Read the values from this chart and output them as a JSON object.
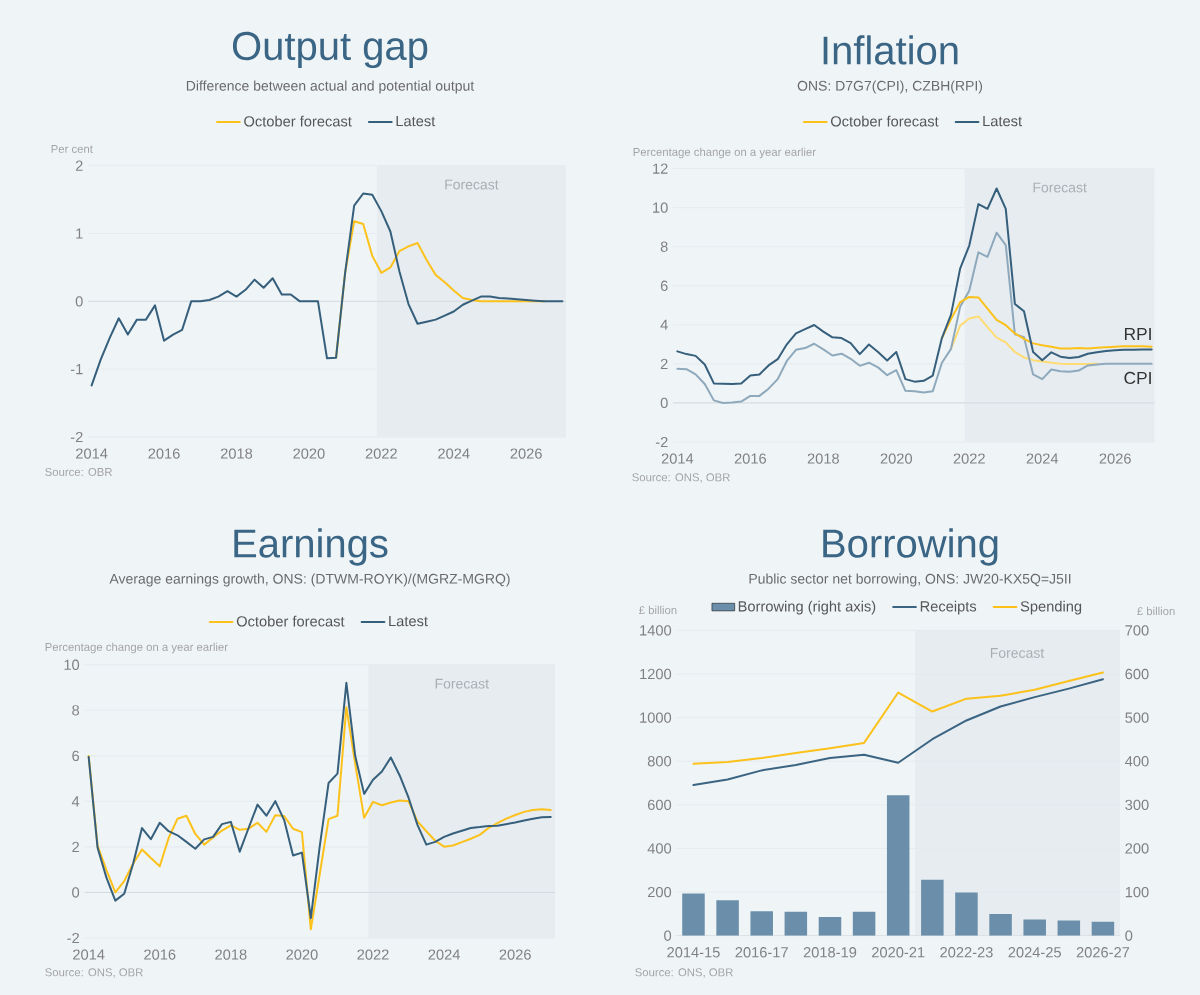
{
  "chart_data": [
    {
      "type": "line",
      "title": "Output gap",
      "subtitle": "Difference between actual and potential output",
      "ylabel": "Per cent",
      "x": [
        2014,
        2014.25,
        2014.5,
        2014.75,
        2015,
        2015.25,
        2015.5,
        2015.75,
        2016,
        2016.25,
        2016.5,
        2016.75,
        2017,
        2017.25,
        2017.5,
        2017.75,
        2018,
        2018.25,
        2018.5,
        2018.75,
        2019,
        2019.25,
        2019.5,
        2019.75,
        2020,
        2020.25,
        2020.5,
        2020.75,
        2021,
        2021.25,
        2021.5,
        2021.75,
        2022,
        2022.25,
        2022.5,
        2022.75,
        2023,
        2023.25,
        2023.5,
        2023.75,
        2024,
        2024.25,
        2024.5,
        2024.75,
        2025,
        2025.25,
        2025.5,
        2025.75,
        2026,
        2026.25,
        2026.5,
        2026.75,
        2027
      ],
      "xlim": [
        2013.9,
        2027.1
      ],
      "xticks": [
        2014,
        2016,
        2018,
        2020,
        2022,
        2024,
        2026
      ],
      "ylim": [
        -2,
        2
      ],
      "yticks": [
        -2,
        -1,
        0,
        1,
        2
      ],
      "series": [
        {
          "name": "October forecast",
          "color": "#fcc21b",
          "values": [
            null,
            null,
            null,
            null,
            null,
            null,
            null,
            null,
            null,
            null,
            null,
            null,
            null,
            null,
            null,
            null,
            null,
            null,
            null,
            null,
            null,
            null,
            null,
            null,
            null,
            null,
            null,
            -0.83,
            0.42,
            1.18,
            1.14,
            0.67,
            0.42,
            0.5,
            0.74,
            0.81,
            0.86,
            0.61,
            0.39,
            0.28,
            0.16,
            0.05,
            0.02,
            0,
            0,
            0,
            0,
            0,
            0,
            0,
            0,
            null,
            null
          ]
        },
        {
          "name": "Latest",
          "color": "#365f7c",
          "values": [
            -1.24,
            -0.86,
            -0.54,
            -0.25,
            -0.49,
            -0.27,
            -0.27,
            -0.06,
            -0.58,
            -0.49,
            -0.42,
            0,
            0,
            0.02,
            0.07,
            0.15,
            0.07,
            0.17,
            0.32,
            0.2,
            0.34,
            0.1,
            0.1,
            0,
            0,
            0,
            -0.84,
            -0.83,
            0.42,
            1.41,
            1.59,
            1.57,
            1.33,
            1.03,
            0.44,
            -0.04,
            -0.33,
            -0.3,
            -0.27,
            -0.21,
            -0.15,
            -0.05,
            0.01,
            0.07,
            0.07,
            0.05,
            0.04,
            0.03,
            0.02,
            0.01,
            0,
            0,
            0
          ]
        }
      ],
      "bands": [
        {
          "axis": "x",
          "from": 2021.875,
          "to": 2027.1,
          "label": "Forecast",
          "color": "#e6ecf0"
        }
      ],
      "annotations": [
        "Source: OBR"
      ],
      "legend": "top",
      "grid": "y"
    },
    {
      "type": "line",
      "title": "Inflation",
      "subtitle": "ONS: D7G7(CPI), CZBH(RPI)",
      "ylabel": "Percentage change on a year earlier",
      "x": [
        2014,
        2014.25,
        2014.5,
        2014.75,
        2015,
        2015.25,
        2015.5,
        2015.75,
        2016,
        2016.25,
        2016.5,
        2016.75,
        2017,
        2017.25,
        2017.5,
        2017.75,
        2018,
        2018.25,
        2018.5,
        2018.75,
        2019,
        2019.25,
        2019.5,
        2019.75,
        2020,
        2020.25,
        2020.5,
        2020.75,
        2021,
        2021.25,
        2021.5,
        2021.75,
        2022,
        2022.25,
        2022.5,
        2022.75,
        2023,
        2023.25,
        2023.5,
        2023.75,
        2024,
        2024.25,
        2024.5,
        2024.75,
        2025,
        2025.25,
        2025.5,
        2025.75,
        2026,
        2026.25,
        2026.5,
        2026.75,
        2027
      ],
      "xlim": [
        2013.88,
        2027.08
      ],
      "xticks": [
        2014,
        2016,
        2018,
        2020,
        2022,
        2024,
        2026
      ],
      "ylim": [
        -2,
        12
      ],
      "yticks": [
        -2,
        0,
        2,
        4,
        6,
        8,
        10,
        12
      ],
      "series": [
        {
          "color": "#ffdc73",
          "values": [
            null,
            null,
            null,
            null,
            null,
            null,
            null,
            null,
            null,
            null,
            null,
            null,
            null,
            null,
            null,
            null,
            null,
            null,
            null,
            null,
            null,
            null,
            null,
            null,
            null,
            null,
            null,
            null,
            null,
            null,
            2.77,
            3.96,
            4.32,
            4.43,
            3.88,
            3.34,
            3.1,
            2.61,
            2.33,
            2.19,
            2.12,
            2.06,
            2.01,
            1.99,
            1.99,
            1.99,
            2,
            null,
            null,
            null,
            null,
            null,
            null
          ]
        },
        {
          "color": "#8fa9bc",
          "values": [
            1.75,
            1.73,
            1.46,
            0.97,
            0.13,
            0,
            0.02,
            0.07,
            0.36,
            0.36,
            0.73,
            1.22,
            2.15,
            2.72,
            2.81,
            3.03,
            2.74,
            2.43,
            2.52,
            2.26,
            1.9,
            2.06,
            1.82,
            1.42,
            1.68,
            0.62,
            0.6,
            0.53,
            0.6,
            2.06,
            2.77,
            4.92,
            5.74,
            7.71,
            7.48,
            8.72,
            8.08,
            3.52,
            3.37,
            1.46,
            1.22,
            1.71,
            1.62,
            1.6,
            1.66,
            1.92,
            1.97,
            2.01,
            2,
            2,
            2,
            2,
            2
          ]
        },
        {
          "name": "October forecast",
          "color": "#fcc21b",
          "values": [
            null,
            null,
            null,
            null,
            null,
            null,
            null,
            null,
            null,
            null,
            null,
            null,
            null,
            null,
            null,
            null,
            null,
            null,
            null,
            null,
            null,
            null,
            null,
            null,
            null,
            null,
            null,
            null,
            null,
            3.32,
            4.29,
            5.16,
            5.43,
            5.4,
            4.83,
            4.25,
            3.98,
            3.56,
            3.28,
            3.05,
            2.95,
            2.88,
            2.79,
            2.79,
            2.81,
            2.79,
            2.83,
            2.85,
            2.88,
            2.9,
            2.9,
            2.9,
            2.88
          ]
        },
        {
          "name": "Latest",
          "color": "#365f7c",
          "values": [
            2.64,
            2.5,
            2.41,
            1.97,
            1.0,
            0.98,
            0.97,
            1.0,
            1.4,
            1.46,
            1.92,
            2.24,
            3.0,
            3.56,
            3.78,
            3.99,
            3.65,
            3.36,
            3.32,
            3.06,
            2.5,
            2.99,
            2.61,
            2.17,
            2.61,
            1.22,
            1.09,
            1.13,
            1.4,
            3.32,
            4.52,
            6.88,
            8.06,
            10.18,
            9.94,
            10.98,
            9.94,
            5.07,
            4.69,
            2.61,
            2.19,
            2.59,
            2.37,
            2.3,
            2.35,
            2.52,
            2.59,
            2.66,
            2.7,
            2.72,
            2.72,
            2.74,
            2.74
          ]
        }
      ],
      "bands": [
        {
          "axis": "x",
          "from": 2021.875,
          "to": 2027.08,
          "label": "Forecast",
          "color": "#e6ecf0"
        }
      ],
      "annotations": [
        "Source: ONS, OBR",
        "RPI",
        "CPI"
      ],
      "legend": "top",
      "grid": "y"
    },
    {
      "type": "line",
      "title": "Earnings",
      "subtitle": "Average earnings growth, ONS: (DTWM-ROYK)/(MGRZ-MGRQ)",
      "ylabel": "Percentage change on a year earlier",
      "x": [
        2014,
        2014.25,
        2014.5,
        2014.75,
        2015,
        2015.25,
        2015.5,
        2015.75,
        2016,
        2016.25,
        2016.5,
        2016.75,
        2017,
        2017.25,
        2017.5,
        2017.75,
        2018,
        2018.25,
        2018.5,
        2018.75,
        2019,
        2019.25,
        2019.5,
        2019.75,
        2020,
        2020.25,
        2020.5,
        2020.75,
        2021,
        2021.25,
        2021.5,
        2021.75,
        2022,
        2022.25,
        2022.5,
        2022.75,
        2023,
        2023.25,
        2023.5,
        2023.75,
        2024,
        2024.25,
        2024.5,
        2024.75,
        2025,
        2025.25,
        2025.5,
        2025.75,
        2026,
        2026.25,
        2026.5,
        2026.75,
        2027
      ],
      "xlim": [
        2013.88,
        2027.12
      ],
      "xticks": [
        2014,
        2016,
        2018,
        2020,
        2022,
        2024,
        2026
      ],
      "ylim": [
        -2,
        10
      ],
      "yticks": [
        -2,
        0,
        2,
        4,
        6,
        8,
        10
      ],
      "series": [
        {
          "name": "October forecast",
          "color": "#fcc21b",
          "values": [
            5.99,
            2.06,
            0.98,
            0,
            0.5,
            1.26,
            1.89,
            1.51,
            1.15,
            2.39,
            3.24,
            3.37,
            2.57,
            2.1,
            2.42,
            2.72,
            2.95,
            2.75,
            2.8,
            3.06,
            2.66,
            3.39,
            3.36,
            2.8,
            2.65,
            -1.62,
            0.8,
            3.22,
            3.37,
            8.14,
            5.64,
            3.28,
            3.98,
            3.83,
            3.95,
            4.04,
            4.01,
            3.12,
            2.69,
            2.27,
            2.01,
            2.06,
            2.21,
            2.36,
            2.53,
            2.83,
            3.04,
            3.24,
            3.4,
            3.54,
            3.62,
            3.65,
            3.62
          ]
        },
        {
          "name": "Latest",
          "color": "#365f7c",
          "values": [
            5.95,
            1.97,
            0.65,
            -0.36,
            -0.06,
            1.26,
            2.83,
            2.34,
            3.06,
            2.69,
            2.51,
            2.22,
            1.92,
            2.33,
            2.44,
            3.0,
            3.1,
            1.79,
            2.83,
            3.86,
            3.37,
            4.01,
            3.18,
            1.62,
            1.75,
            -1.13,
            2.01,
            4.81,
            5.22,
            9.21,
            5.99,
            4.33,
            4.95,
            5.31,
            5.93,
            5.14,
            4.16,
            2.97,
            2.1,
            2.22,
            2.44,
            2.59,
            2.71,
            2.83,
            2.87,
            2.92,
            2.93,
            3.0,
            3.07,
            3.16,
            3.24,
            3.3,
            3.31
          ]
        }
      ],
      "bands": [
        {
          "axis": "x",
          "from": 2021.875,
          "to": 2027.12,
          "label": "Forecast",
          "color": "#e6ecf0"
        }
      ],
      "annotations": [
        "Source: ONS, OBR"
      ],
      "legend": "top",
      "grid": "y"
    },
    {
      "type": "bar",
      "title": "Borrowing",
      "subtitle": "Public sector net borrowing, ONS: JW20-KX5Q=J5II",
      "ylabel": "£ billion",
      "y2label": "£ billion",
      "categories": [
        "2014-15",
        null,
        "2016-17",
        null,
        "2018-19",
        null,
        "2020-21",
        null,
        "2022-23",
        null,
        "2024-25",
        null,
        "2026-27"
      ],
      "ylim": [
        0,
        1400
      ],
      "yticks": [
        0,
        200,
        400,
        600,
        800,
        1000,
        1200,
        1400
      ],
      "y2lim": [
        0,
        700
      ],
      "y2ticks": [
        0,
        100,
        200,
        300,
        400,
        500,
        600,
        700
      ],
      "series": [
        {
          "name": "Borrowing (right axis)",
          "color": "#6b8faa",
          "axis": "y2",
          "values": [
            97,
            81,
            56,
            55,
            43,
            55,
            322,
            128,
            99,
            50,
            37,
            35,
            32
          ]
        },
        {
          "name": "Receipts",
          "type": "line",
          "color": "#3a6482",
          "values": [
            691,
            716,
            758,
            783,
            815,
            830,
            793,
            901,
            987,
            1051,
            1094,
            1133,
            1176
          ]
        },
        {
          "name": "Spending",
          "type": "line",
          "color": "#fcc21b",
          "values": [
            788,
            796,
            815,
            838,
            860,
            884,
            1115,
            1028,
            1087,
            1100,
            1128,
            1168,
            1207
          ]
        }
      ],
      "annotations": [
        "Source: ONS, OBR",
        "Forecast"
      ],
      "legend": "top",
      "grid": "y"
    }
  ]
}
